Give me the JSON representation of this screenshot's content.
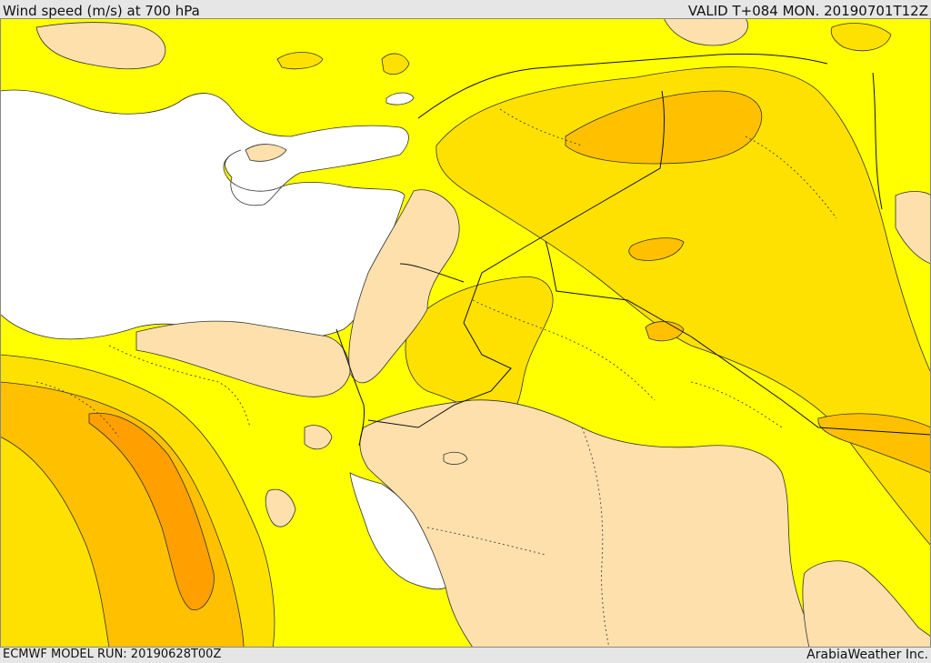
{
  "header": {
    "title": "Wind speed (m/s) at 700 hPa",
    "valid": "VALID T+084 MON. 20190701T12Z"
  },
  "footer": {
    "model_run": "ECMWF MODEL RUN: 20190628T00Z",
    "credit": "ArabiaWeather Inc."
  },
  "map": {
    "variable": "wind speed",
    "units": "m/s",
    "level": "700 hPa",
    "palette": {
      "sea": "#ffffff",
      "level_lowest": "#fde0ac",
      "level_low": "#ffff00",
      "level_mid": "#ffe100",
      "level_high": "#ffc000",
      "level_highest": "#ffa000",
      "contour": "#333333",
      "border": "#111111",
      "boundary_dotted": "#444444"
    }
  }
}
